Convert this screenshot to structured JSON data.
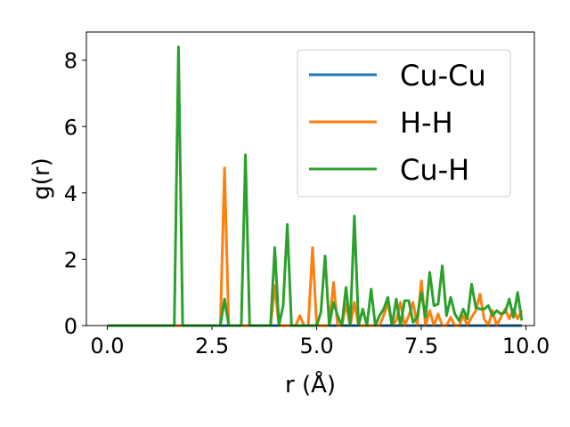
{
  "chart_data": {
    "type": "line",
    "xlabel": "r (Å)",
    "ylabel": "g(r)",
    "xlim": [
      -0.5,
      10.2
    ],
    "ylim": [
      0,
      8.85
    ],
    "xticks": [
      0.0,
      2.5,
      5.0,
      7.5,
      10.0
    ],
    "xtick_labels": [
      "0.0",
      "2.5",
      "5.0",
      "7.5",
      "10.0"
    ],
    "yticks": [
      0,
      2,
      4,
      6,
      8
    ],
    "ytick_labels": [
      "0",
      "2",
      "4",
      "6",
      "8"
    ],
    "grid": false,
    "legend_position": "top-right",
    "series": [
      {
        "name": "Cu-Cu",
        "color": "#1f77b4",
        "x": [
          0.0,
          9.9
        ],
        "y": [
          0.0,
          0.0
        ]
      },
      {
        "name": "H-H",
        "color": "#ff7f0e",
        "x": [
          0.0,
          2.7,
          2.8,
          2.9,
          3.0,
          3.9,
          4.0,
          4.1,
          4.5,
          4.6,
          4.7,
          4.8,
          4.9,
          5.0,
          5.3,
          5.4,
          5.5,
          5.6,
          5.7,
          5.8,
          5.9,
          6.0,
          6.1,
          6.5,
          6.6,
          6.7,
          6.8,
          6.9,
          7.0,
          7.1,
          7.2,
          7.3,
          7.4,
          7.5,
          7.6,
          7.7,
          7.8,
          7.9,
          8.0,
          8.1,
          8.2,
          8.3,
          8.4,
          8.5,
          8.6,
          8.7,
          8.8,
          8.9,
          9.0,
          9.1,
          9.2,
          9.3,
          9.4,
          9.5,
          9.6,
          9.7,
          9.8,
          9.9
        ],
        "y": [
          0.0,
          0.0,
          4.75,
          0.0,
          0.0,
          0.0,
          1.2,
          0.0,
          0.0,
          0.3,
          0.0,
          0.0,
          2.35,
          0.0,
          0.0,
          1.3,
          0.0,
          0.0,
          0.65,
          0.0,
          0.7,
          0.0,
          0.0,
          0.0,
          0.3,
          0.7,
          0.0,
          0.15,
          0.7,
          0.0,
          0.3,
          0.7,
          0.0,
          1.35,
          0.0,
          0.45,
          0.0,
          0.35,
          0.0,
          0.0,
          0.25,
          0.0,
          0.0,
          0.3,
          0.0,
          0.25,
          0.45,
          0.95,
          0.2,
          0.0,
          0.45,
          0.0,
          0.25,
          0.5,
          0.2,
          0.5,
          0.2,
          0.45
        ]
      },
      {
        "name": "Cu-H",
        "color": "#2ca02c",
        "x": [
          0.0,
          1.6,
          1.7,
          1.8,
          2.7,
          2.8,
          2.9,
          3.2,
          3.3,
          3.4,
          3.9,
          4.0,
          4.1,
          4.2,
          4.3,
          4.4,
          4.9,
          5.0,
          5.1,
          5.2,
          5.3,
          5.4,
          5.5,
          5.6,
          5.7,
          5.8,
          5.9,
          6.0,
          6.1,
          6.2,
          6.3,
          6.4,
          6.5,
          6.6,
          6.7,
          6.8,
          6.9,
          7.0,
          7.1,
          7.2,
          7.3,
          7.4,
          7.5,
          7.6,
          7.7,
          7.8,
          7.9,
          8.0,
          8.1,
          8.2,
          8.3,
          8.4,
          8.5,
          8.6,
          8.7,
          8.8,
          8.9,
          9.0,
          9.1,
          9.2,
          9.3,
          9.4,
          9.5,
          9.6,
          9.7,
          9.8,
          9.9
        ],
        "y": [
          0.0,
          0.0,
          8.4,
          0.0,
          0.0,
          0.8,
          0.0,
          0.0,
          5.15,
          0.0,
          0.0,
          2.35,
          0.0,
          0.6,
          3.05,
          0.0,
          0.0,
          0.0,
          0.4,
          2.1,
          0.0,
          0.7,
          0.3,
          0.0,
          1.15,
          0.0,
          3.3,
          0.0,
          0.5,
          0.0,
          1.1,
          0.0,
          0.3,
          0.5,
          0.85,
          0.0,
          0.8,
          0.0,
          0.75,
          0.75,
          0.1,
          0.25,
          1.0,
          0.25,
          1.6,
          0.6,
          0.65,
          1.8,
          0.3,
          0.85,
          0.35,
          0.15,
          0.5,
          0.2,
          1.25,
          0.55,
          0.5,
          0.5,
          0.6,
          0.3,
          0.45,
          0.35,
          0.4,
          0.8,
          0.25,
          1.0,
          0.15
        ]
      }
    ]
  }
}
